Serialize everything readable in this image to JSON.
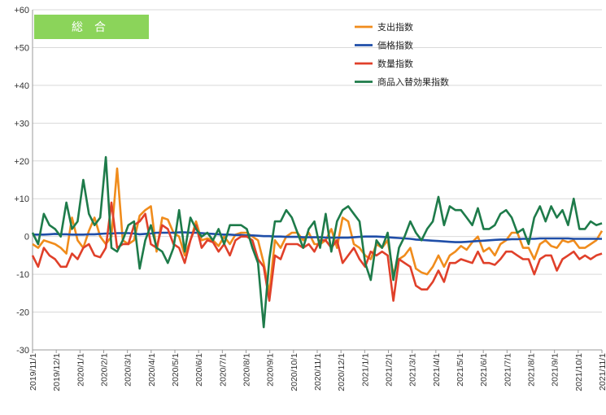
{
  "chart_data": {
    "type": "line",
    "badge": "総合",
    "ylim": [
      -30,
      60
    ],
    "y_ticks": [
      "+60",
      "+50",
      "+40",
      "+30",
      "+20",
      "+10",
      "0",
      "-10",
      "-20",
      "-30"
    ],
    "x_ticks": [
      "2019/11/1",
      "2019/12/1",
      "2020/1/1",
      "2020/2/1",
      "2020/3/1",
      "2020/4/1",
      "2020/5/1",
      "2020/6/1",
      "2020/7/1",
      "2020/8/1",
      "2020/9/1",
      "2020/10/1",
      "2020/11/1",
      "2020/12/1",
      "2021/1/1",
      "2021/2/1",
      "2021/3/1",
      "2021/4/1",
      "2021/5/1",
      "2021/6/1",
      "2021/7/1",
      "2021/8/1",
      "2021/9/1",
      "2021/10/1",
      "2021/11/1"
    ],
    "legend_position": "top-right",
    "series": [
      {
        "name": "支出指数",
        "color": "#f08c1c",
        "values": [
          -2,
          -3,
          -1,
          -1.5,
          -2,
          -3,
          -4.5,
          5,
          -1,
          -3,
          1.5,
          5,
          0,
          -2,
          0,
          18,
          -1,
          -2,
          -1,
          5.5,
          7,
          8,
          -4,
          5,
          4.5,
          1,
          0,
          -5,
          -1,
          4,
          -1,
          -0.5,
          -1,
          -2.5,
          0,
          -2,
          0.5,
          1,
          1,
          0,
          -1,
          -7,
          -15,
          -1,
          -3,
          0,
          1,
          1,
          -1,
          1,
          -2,
          -2,
          -1,
          2,
          -3,
          5,
          4,
          -2,
          -3,
          -5,
          -6,
          -2,
          -3,
          -1,
          -10,
          -6,
          -5,
          -3,
          -8.5,
          -9.5,
          -10,
          -8,
          -5,
          -8,
          -5,
          -4,
          -2.5,
          -3.5,
          -1.5,
          0,
          -4,
          -3,
          -5,
          -2,
          -1,
          1,
          1,
          -3,
          -3,
          -6,
          -2,
          -1,
          -2.5,
          -3,
          -1,
          -1.5,
          -1,
          -3,
          -3,
          -2,
          -1,
          1.5
        ]
      },
      {
        "name": "価格指数",
        "color": "#1f4ea8",
        "values": [
          0.5,
          0.5,
          0.5,
          0.6,
          0.7,
          0.6,
          0.6,
          0.5,
          0.5,
          0.5,
          0.6,
          0.6,
          0.7,
          0.8,
          0.8,
          0.9,
          0.9,
          0.9,
          0.8,
          0.6,
          0.7,
          0.8,
          1,
          1,
          1,
          1,
          1.1,
          1.1,
          1,
          1,
          0.9,
          0.8,
          0.7,
          0.6,
          0.5,
          0.5,
          0.4,
          0.4,
          0.3,
          0.3,
          0.2,
          0.1,
          0.1,
          0,
          0,
          -0.1,
          -0.1,
          -0.1,
          -0.2,
          -0.2,
          -0.2,
          -0.2,
          -0.3,
          -0.3,
          -0.3,
          -0.3,
          -0.3,
          -0.2,
          -0.1,
          0,
          0,
          0,
          -0.1,
          -0.2,
          -0.3,
          -0.4,
          -0.5,
          -0.6,
          -0.8,
          -0.9,
          -1,
          -1.1,
          -1.2,
          -1.3,
          -1.4,
          -1.5,
          -1.5,
          -1.4,
          -1.3,
          -1.2,
          -1.1,
          -1,
          -0.9,
          -0.8,
          -0.8,
          -0.7,
          -0.7,
          -0.6,
          -0.6,
          -0.6,
          -0.5,
          -0.5,
          -0.5,
          -0.5,
          -0.5,
          -0.5,
          -0.6,
          -0.6,
          -0.6,
          -0.6,
          -0.6,
          -0.6
        ]
      },
      {
        "name": "数量指数",
        "color": "#e0402a",
        "values": [
          -5,
          -8,
          -3,
          -5,
          -6,
          -8,
          -8,
          -4.5,
          -6,
          -3,
          -2,
          -5,
          -5.5,
          -3,
          9,
          -3,
          -2,
          -2,
          3,
          4,
          6,
          -2,
          -3,
          3,
          2,
          -2,
          -3,
          -7,
          -1,
          3,
          -3,
          -1,
          -1.5,
          -4,
          -2,
          -5,
          -1,
          0,
          0,
          -1,
          -6,
          -8,
          -17,
          -5,
          -6,
          -2,
          -2,
          -2,
          -3,
          -2,
          -4,
          -1,
          -1,
          -3,
          -1,
          -7,
          -5,
          -3,
          -6,
          -8,
          -4,
          -5,
          -4,
          -5,
          -17,
          -6,
          -7,
          -8,
          -13,
          -14,
          -14,
          -12,
          -9,
          -12,
          -7,
          -7,
          -6,
          -6.5,
          -7,
          -4,
          -7,
          -7,
          -7.5,
          -6,
          -4,
          -4,
          -5,
          -6,
          -6,
          -10,
          -6,
          -5,
          -5,
          -9,
          -6,
          -5,
          -4,
          -6,
          -5,
          -6,
          -5,
          -4.5
        ]
      },
      {
        "name": "商品入替効果指数",
        "color": "#1e7b4a",
        "values": [
          1,
          -2,
          6,
          3,
          2,
          0,
          9,
          2,
          4,
          15,
          6,
          3,
          5,
          21,
          -3,
          -4,
          -1,
          3,
          4,
          -8.5,
          -1,
          3,
          -3,
          -4,
          -7,
          -3,
          7,
          -4,
          5,
          2,
          0,
          1,
          -1,
          2,
          -2,
          3,
          3,
          3,
          2,
          -3,
          -7,
          -24,
          -6,
          4,
          4,
          7,
          5,
          1,
          -3,
          2,
          4,
          -3,
          6,
          -4,
          4,
          7,
          8,
          6,
          4,
          -7,
          -11.5,
          -1,
          -3,
          1,
          -11.5,
          -3,
          0,
          4,
          1,
          -1,
          2,
          4,
          10.5,
          3,
          8,
          7,
          7,
          5,
          3,
          7.5,
          2,
          2,
          3,
          6,
          7,
          5,
          1,
          2,
          -2,
          5,
          8,
          4,
          8,
          5,
          7,
          3,
          10,
          2,
          2,
          4,
          3,
          3.5
        ]
      }
    ]
  }
}
